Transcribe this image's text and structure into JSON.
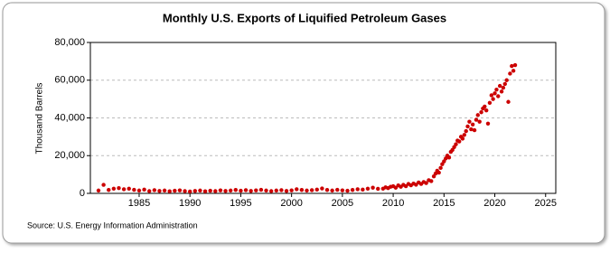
{
  "chart_data": {
    "type": "scatter",
    "title": "Monthly U.S. Exports of Liquified Petroleum Gases",
    "y_label": "Thousand Barrels",
    "source": "Source: U.S. Energy Information Administration",
    "color": "#cc0000",
    "grid": true,
    "xlim": [
      1980.2,
      2026
    ],
    "xticks": [
      1985,
      1990,
      1995,
      2000,
      2005,
      2010,
      2015,
      2020,
      2025
    ],
    "ylim": [
      0,
      80000
    ],
    "yticks": [
      0,
      {
        "value": 20000,
        "label": "20,000"
      },
      {
        "value": 40000,
        "label": "40,000"
      },
      {
        "value": 60000,
        "label": "60,000"
      },
      {
        "value": 80000,
        "label": "80,000"
      }
    ],
    "x": [
      1981.0,
      1981.5,
      1982.0,
      1982.5,
      1983.0,
      1983.5,
      1984.0,
      1984.5,
      1985.0,
      1985.5,
      1986.0,
      1986.5,
      1987.0,
      1987.5,
      1988.0,
      1988.5,
      1989.0,
      1989.5,
      1990.0,
      1990.5,
      1991.0,
      1991.5,
      1992.0,
      1992.5,
      1993.0,
      1993.5,
      1994.0,
      1994.5,
      1995.0,
      1995.5,
      1996.0,
      1996.5,
      1997.0,
      1997.5,
      1998.0,
      1998.5,
      1999.0,
      1999.5,
      2000.0,
      2000.5,
      2001.0,
      2001.5,
      2002.0,
      2002.5,
      2003.0,
      2003.5,
      2004.0,
      2004.5,
      2005.0,
      2005.5,
      2006.0,
      2006.5,
      2007.0,
      2007.5,
      2008.0,
      2008.5,
      2009.0,
      2009.25,
      2009.5,
      2009.75,
      2010.0,
      2010.25,
      2010.5,
      2010.75,
      2011.0,
      2011.25,
      2011.5,
      2011.75,
      2012.0,
      2012.25,
      2012.5,
      2012.75,
      2013.0,
      2013.25,
      2013.5,
      2013.75,
      2014.0,
      2014.17,
      2014.33,
      2014.5,
      2014.67,
      2014.83,
      2015.0,
      2015.17,
      2015.33,
      2015.5,
      2015.67,
      2015.83,
      2016.0,
      2016.17,
      2016.33,
      2016.5,
      2016.67,
      2016.83,
      2017.0,
      2017.17,
      2017.33,
      2017.5,
      2017.67,
      2017.83,
      2018.0,
      2018.17,
      2018.33,
      2018.5,
      2018.67,
      2018.83,
      2019.0,
      2019.17,
      2019.33,
      2019.5,
      2019.67,
      2019.83,
      2020.0,
      2020.17,
      2020.33,
      2020.5,
      2020.67,
      2020.83,
      2021.0,
      2021.17,
      2021.33,
      2021.5,
      2021.67,
      2021.83,
      2022.0
    ],
    "values": [
      1500,
      4500,
      1800,
      2500,
      2800,
      2200,
      2500,
      1900,
      1500,
      2000,
      1200,
      1700,
      1300,
      1500,
      1100,
      1400,
      1600,
      1200,
      1000,
      1300,
      1500,
      1100,
      1400,
      1200,
      1600,
      1300,
      1500,
      1800,
      1400,
      1700,
      1300,
      1600,
      1900,
      1500,
      1200,
      1500,
      1700,
      1300,
      1600,
      2200,
      1800,
      1500,
      1700,
      2000,
      2600,
      1800,
      1500,
      1900,
      1600,
      1400,
      1800,
      2200,
      2000,
      2500,
      3000,
      2400,
      2500,
      3200,
      2800,
      3500,
      3800,
      3000,
      4200,
      3500,
      4500,
      3800,
      5000,
      4300,
      5200,
      4600,
      5800,
      5000,
      6000,
      5500,
      7000,
      6500,
      9000,
      10500,
      12000,
      11000,
      13500,
      15500,
      17000,
      18500,
      20000,
      19000,
      22000,
      23000,
      24500,
      26000,
      28000,
      27500,
      30000,
      29000,
      31000,
      33000,
      35500,
      38000,
      34000,
      36500,
      33500,
      39000,
      41500,
      38000,
      43000,
      45000,
      46000,
      44000,
      37000,
      48000,
      52000,
      50000,
      53000,
      55000,
      51500,
      57000,
      54000,
      56000,
      58000,
      60000,
      48500,
      63500,
      67500,
      65000,
      68000
    ]
  }
}
